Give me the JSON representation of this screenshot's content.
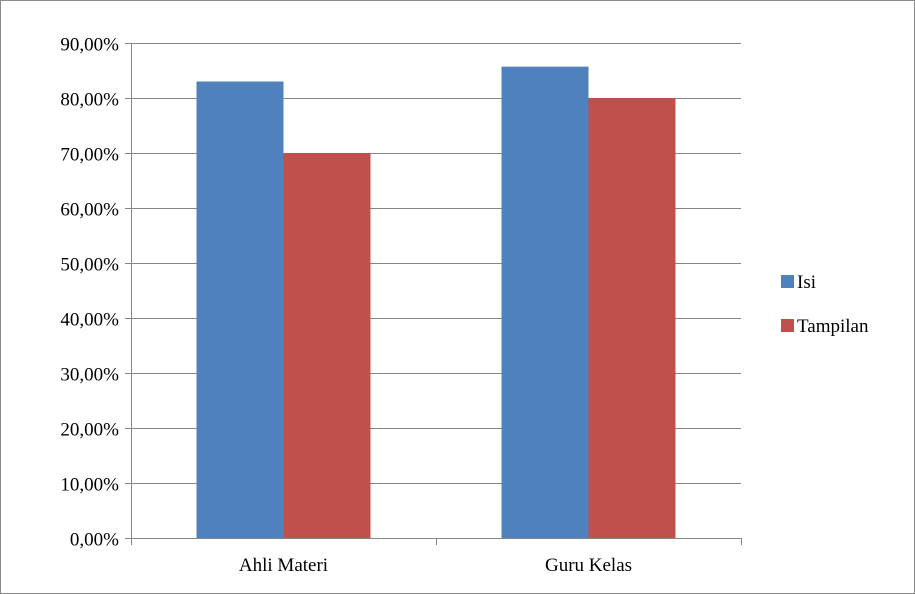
{
  "chart_data": {
    "type": "bar",
    "title": "",
    "xlabel": "",
    "ylabel": "",
    "categories": [
      "Ahli Materi",
      "Guru Kelas"
    ],
    "series": [
      {
        "name": "Isi",
        "values": [
          0.83,
          0.857
        ],
        "color": "#4F81BD"
      },
      {
        "name": "Tampilan",
        "values": [
          0.7,
          0.8
        ],
        "color": "#C0504D"
      }
    ],
    "ylim": [
      0,
      0.9
    ],
    "yticks": [
      {
        "value": 0.0,
        "label": "0,00%"
      },
      {
        "value": 0.1,
        "label": "10,00%"
      },
      {
        "value": 0.2,
        "label": "20,00%"
      },
      {
        "value": 0.3,
        "label": "30,00%"
      },
      {
        "value": 0.4,
        "label": "40,00%"
      },
      {
        "value": 0.5,
        "label": "50,00%"
      },
      {
        "value": 0.6,
        "label": "60,00%"
      },
      {
        "value": 0.7,
        "label": "70,00%"
      },
      {
        "value": 0.8,
        "label": "80,00%"
      },
      {
        "value": 0.9,
        "label": "90,00%"
      }
    ],
    "grid": true,
    "legend_position": "right"
  }
}
